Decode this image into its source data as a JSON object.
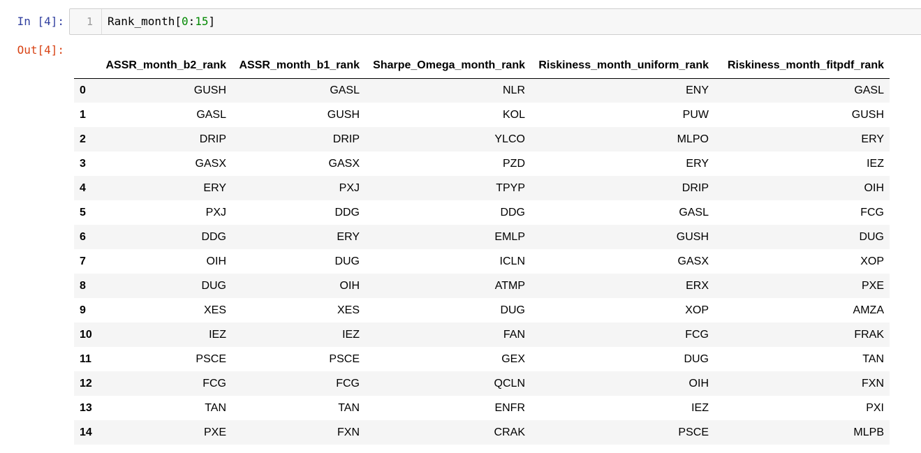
{
  "input_prompt": "In [4]:",
  "output_prompt": "Out[4]:",
  "code_cell": {
    "line_number": "1",
    "code_prefix": "Rank_month[",
    "code_start": "0",
    "code_colon": ":",
    "code_end": "15",
    "code_suffix": "]"
  },
  "table": {
    "columns": [
      "ASSR_month_b2_rank",
      "ASSR_month_b1_rank",
      "Sharpe_Omega_month_rank",
      "Riskiness_month_uniform_rank",
      "Riskiness_month_fitpdf_rank"
    ],
    "rows": [
      {
        "index": "0",
        "cells": [
          "GUSH",
          "GASL",
          "NLR",
          "ENY",
          "GASL"
        ]
      },
      {
        "index": "1",
        "cells": [
          "GASL",
          "GUSH",
          "KOL",
          "PUW",
          "GUSH"
        ]
      },
      {
        "index": "2",
        "cells": [
          "DRIP",
          "DRIP",
          "YLCO",
          "MLPO",
          "ERY"
        ]
      },
      {
        "index": "3",
        "cells": [
          "GASX",
          "GASX",
          "PZD",
          "ERY",
          "IEZ"
        ]
      },
      {
        "index": "4",
        "cells": [
          "ERY",
          "PXJ",
          "TPYP",
          "DRIP",
          "OIH"
        ]
      },
      {
        "index": "5",
        "cells": [
          "PXJ",
          "DDG",
          "DDG",
          "GASL",
          "FCG"
        ]
      },
      {
        "index": "6",
        "cells": [
          "DDG",
          "ERY",
          "EMLP",
          "GUSH",
          "DUG"
        ]
      },
      {
        "index": "7",
        "cells": [
          "OIH",
          "DUG",
          "ICLN",
          "GASX",
          "XOP"
        ]
      },
      {
        "index": "8",
        "cells": [
          "DUG",
          "OIH",
          "ATMP",
          "ERX",
          "PXE"
        ]
      },
      {
        "index": "9",
        "cells": [
          "XES",
          "XES",
          "DUG",
          "XOP",
          "AMZA"
        ]
      },
      {
        "index": "10",
        "cells": [
          "IEZ",
          "IEZ",
          "FAN",
          "FCG",
          "FRAK"
        ]
      },
      {
        "index": "11",
        "cells": [
          "PSCE",
          "PSCE",
          "GEX",
          "DUG",
          "TAN"
        ]
      },
      {
        "index": "12",
        "cells": [
          "FCG",
          "FCG",
          "QCLN",
          "OIH",
          "FXN"
        ]
      },
      {
        "index": "13",
        "cells": [
          "TAN",
          "TAN",
          "ENFR",
          "IEZ",
          "PXI"
        ]
      },
      {
        "index": "14",
        "cells": [
          "PXE",
          "FXN",
          "CRAK",
          "PSCE",
          "MLPB"
        ]
      }
    ]
  }
}
